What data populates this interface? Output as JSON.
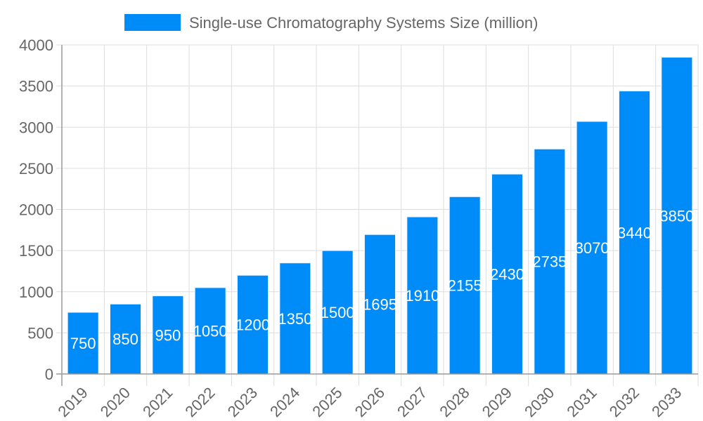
{
  "chart_data": {
    "type": "bar",
    "categories": [
      "2019",
      "2020",
      "2021",
      "2022",
      "2023",
      "2024",
      "2025",
      "2026",
      "2027",
      "2028",
      "2029",
      "2030",
      "2031",
      "2032",
      "2033"
    ],
    "series": [
      {
        "name": "Single-use Chromatography Systems Size (million)",
        "values": [
          750,
          850,
          950,
          1050,
          1200,
          1350,
          1500,
          1695,
          1910,
          2155,
          2430,
          2735,
          3070,
          3440,
          3850
        ],
        "color": "#008cf8"
      }
    ],
    "ylim": [
      0,
      4000
    ],
    "yticks": [
      0,
      500,
      1000,
      1500,
      2000,
      2500,
      3000,
      3500,
      4000
    ],
    "grid": true,
    "legend_position": "top",
    "data_labels": true
  }
}
